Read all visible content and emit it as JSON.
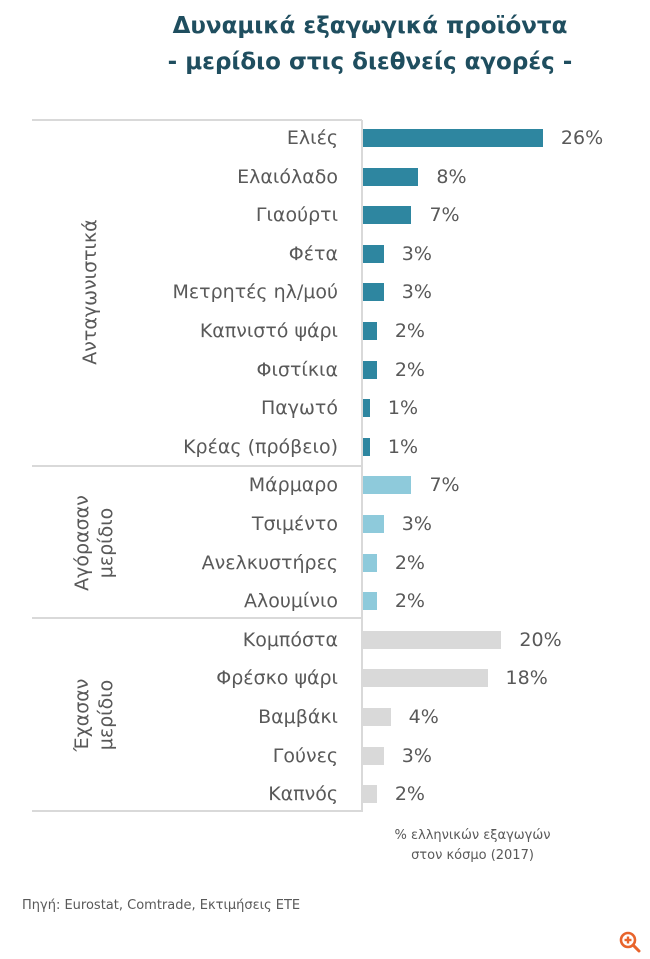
{
  "title": {
    "line1": "Δυναμικά εξαγωγικά προϊόντα",
    "line2": "- μερίδιο στις διεθνείς αγορές -"
  },
  "groups": [
    {
      "label": "Ανταγωνιστικά",
      "color": "#2e86a0"
    },
    {
      "label": "Αγόρασαν μερίδιο",
      "line1": "Αγόρασαν",
      "line2": "μερίδιο",
      "color": "#8ecadb"
    },
    {
      "label": "Έχασαν μερίδιο",
      "line1": "Έχασαν",
      "line2": "μερίδιο",
      "color": "#d9d9d9"
    }
  ],
  "rows": [
    {
      "label": "Ελιές",
      "value": 26,
      "display": "26%",
      "group": 0
    },
    {
      "label": "Ελαιόλαδο",
      "value": 8,
      "display": "8%",
      "group": 0
    },
    {
      "label": "Γιαούρτι",
      "value": 7,
      "display": "7%",
      "group": 0
    },
    {
      "label": "Φέτα",
      "value": 3,
      "display": "3%",
      "group": 0
    },
    {
      "label": "Μετρητές ηλ/μού",
      "value": 3,
      "display": "3%",
      "group": 0
    },
    {
      "label": "Καπνιστό ψάρι",
      "value": 2,
      "display": "2%",
      "group": 0
    },
    {
      "label": "Φιστίκια",
      "value": 2,
      "display": "2%",
      "group": 0
    },
    {
      "label": "Παγωτό",
      "value": 1,
      "display": "1%",
      "group": 0
    },
    {
      "label": "Κρέας (πρόβειο)",
      "value": 1,
      "display": "1%",
      "group": 0
    },
    {
      "label": "Μάρμαρο",
      "value": 7,
      "display": "7%",
      "group": 1
    },
    {
      "label": "Τσιμέντο",
      "value": 3,
      "display": "3%",
      "group": 1
    },
    {
      "label": "Ανελκυστήρες",
      "value": 2,
      "display": "2%",
      "group": 1
    },
    {
      "label": "Αλουμίνιο",
      "value": 2,
      "display": "2%",
      "group": 1
    },
    {
      "label": "Κομπόστα",
      "value": 20,
      "display": "20%",
      "group": 2
    },
    {
      "label": "Φρέσκο ψάρι",
      "value": 18,
      "display": "18%",
      "group": 2
    },
    {
      "label": "Βαμβάκι",
      "value": 4,
      "display": "4%",
      "group": 2
    },
    {
      "label": "Γούνες",
      "value": 3,
      "display": "3%",
      "group": 2
    },
    {
      "label": "Καπνός",
      "value": 2,
      "display": "2%",
      "group": 2
    }
  ],
  "note": {
    "line1": "% ελληνικών εξαγωγών",
    "line2": "στον κόσμο (2017)"
  },
  "source": "Πηγή: Eurostat, Comtrade, Εκτιμήσεις ΕΤΕ",
  "zoom_icon": "zoom-in-icon",
  "colors": {
    "title": "#1f4e5f",
    "competitive": "#2e86a0",
    "gained": "#8ecadb",
    "lost": "#d9d9d9",
    "text": "#595959",
    "zoom_icon": "#e8642c"
  },
  "chart_data": {
    "type": "bar",
    "orientation": "horizontal",
    "title": "Δυναμικά εξαγωγικά προϊόντα - μερίδιο στις διεθνείς αγορές -",
    "xlabel": "% ελληνικών εξαγωγών στον κόσμο (2017)",
    "ylabel": "",
    "categories": [
      "Ελιές",
      "Ελαιόλαδο",
      "Γιαούρτι",
      "Φέτα",
      "Μετρητές ηλ/μού",
      "Καπνιστό ψάρι",
      "Φιστίκια",
      "Παγωτό",
      "Κρέας (πρόβειο)",
      "Μάρμαρο",
      "Τσιμέντο",
      "Ανελκυστήρες",
      "Αλουμίνιο",
      "Κομπόστα",
      "Φρέσκο ψάρι",
      "Βαμβάκι",
      "Γούνες",
      "Καπνός"
    ],
    "values": [
      26,
      8,
      7,
      3,
      3,
      2,
      2,
      1,
      1,
      7,
      3,
      2,
      2,
      20,
      18,
      4,
      3,
      2
    ],
    "groups": [
      {
        "name": "Ανταγωνιστικά",
        "categories": [
          "Ελιές",
          "Ελαιόλαδο",
          "Γιαούρτι",
          "Φέτα",
          "Μετρητές ηλ/μού",
          "Καπνιστό ψάρι",
          "Φιστίκια",
          "Παγωτό",
          "Κρέας (πρόβειο)"
        ],
        "color": "#2e86a0"
      },
      {
        "name": "Αγόρασαν μερίδιο",
        "categories": [
          "Μάρμαρο",
          "Τσιμέντο",
          "Ανελκυστήρες",
          "Αλουμίνιο"
        ],
        "color": "#8ecadb"
      },
      {
        "name": "Έχασαν μερίδιο",
        "categories": [
          "Κομπόστα",
          "Φρέσκο ψάρι",
          "Βαμβάκι",
          "Γούνες",
          "Καπνός"
        ],
        "color": "#d9d9d9"
      }
    ],
    "data_labels": true,
    "grid": false,
    "xlim": [
      0,
      26
    ],
    "source": "Πηγή: Eurostat, Comtrade, Εκτιμήσεις ΕΤΕ"
  }
}
